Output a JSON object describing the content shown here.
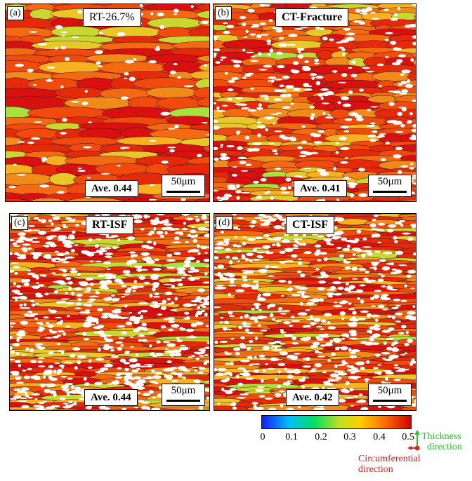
{
  "panels": [
    {
      "id": "a",
      "tag": "(a)",
      "title": "RT-26.7%",
      "title_bold": false,
      "average": "Ave. 0.44",
      "scale": "50μm",
      "white_fraction": 0.02,
      "grain_style": "coarse"
    },
    {
      "id": "b",
      "tag": "(b)",
      "title": "CT-Fracture",
      "title_bold": true,
      "average": "Ave. 0.41",
      "scale": "50μm",
      "white_fraction": 0.08,
      "grain_style": "medium"
    },
    {
      "id": "c",
      "tag": "(c)",
      "title": "RT-ISF",
      "title_bold": true,
      "average": "Ave. 0.44",
      "scale": "50μm",
      "white_fraction": 0.18,
      "grain_style": "fine"
    },
    {
      "id": "d",
      "tag": "(d)",
      "title": "CT-ISF",
      "title_bold": true,
      "average": "Ave. 0.42",
      "scale": "50μm",
      "white_fraction": 0.15,
      "grain_style": "fine"
    }
  ],
  "colorbar": {
    "ticks": [
      "0",
      "0.1",
      "0.2",
      "0.3",
      "0.4",
      "0.5"
    ],
    "range": [
      0,
      0.5
    ],
    "colors": [
      "#1a1aff",
      "#00bfff",
      "#00e060",
      "#bfe020",
      "#ffd000",
      "#ff7000",
      "#d00000"
    ]
  },
  "directions": {
    "thickness_line1": "Thickness",
    "thickness_line2": "direction",
    "thickness_color": "#22cc22",
    "circ_line1": "Circumferential",
    "circ_line2": "direction",
    "circ_color": "#e02020"
  }
}
